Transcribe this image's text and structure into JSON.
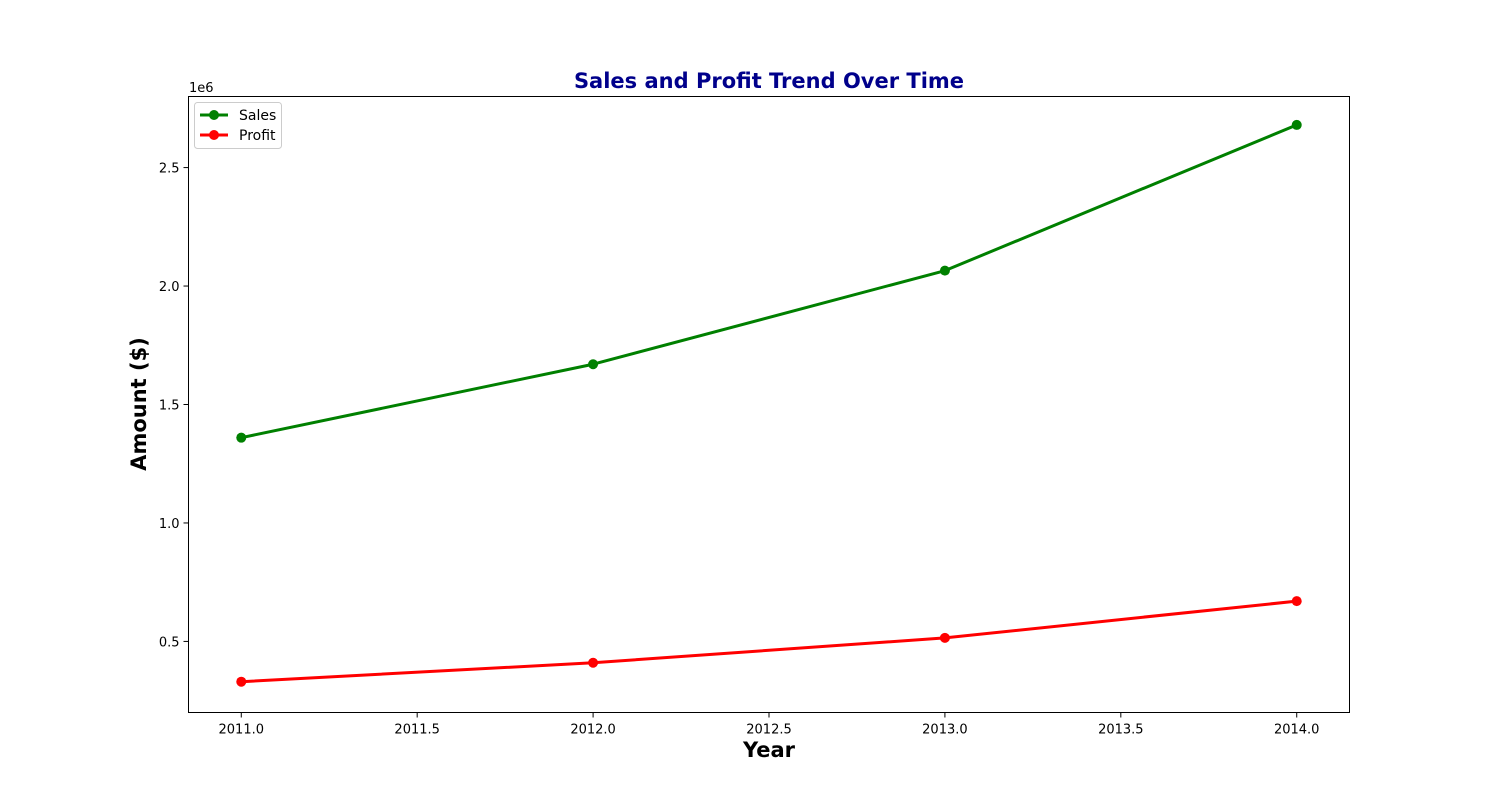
{
  "chart_data": {
    "type": "line",
    "title": "Sales and Profit Trend Over Time",
    "title_color": "#00008b",
    "xlabel": "Year",
    "ylabel": "Amount ($)",
    "y_offset_label": "1e6",
    "xlim": [
      2010.85,
      2014.15
    ],
    "ylim": [
      0.2,
      2.8
    ],
    "x_ticks": [
      2011.0,
      2011.5,
      2012.0,
      2012.5,
      2013.0,
      2013.5,
      2014.0
    ],
    "x_tick_labels": [
      "2011.0",
      "2011.5",
      "2012.0",
      "2012.5",
      "2013.0",
      "2013.5",
      "2014.0"
    ],
    "y_ticks": [
      0.5,
      1.0,
      1.5,
      2.0,
      2.5
    ],
    "y_tick_labels": [
      "0.5",
      "1.0",
      "1.5",
      "2.0",
      "2.5"
    ],
    "grid": false,
    "legend_position": "top-left",
    "x": [
      2011,
      2012,
      2013,
      2014
    ],
    "series": [
      {
        "name": "Sales",
        "color": "#008000",
        "values": [
          1.36,
          1.67,
          2.065,
          2.68
        ]
      },
      {
        "name": "Profit",
        "color": "#ff0000",
        "values": [
          0.33,
          0.41,
          0.515,
          0.67
        ]
      }
    ]
  }
}
